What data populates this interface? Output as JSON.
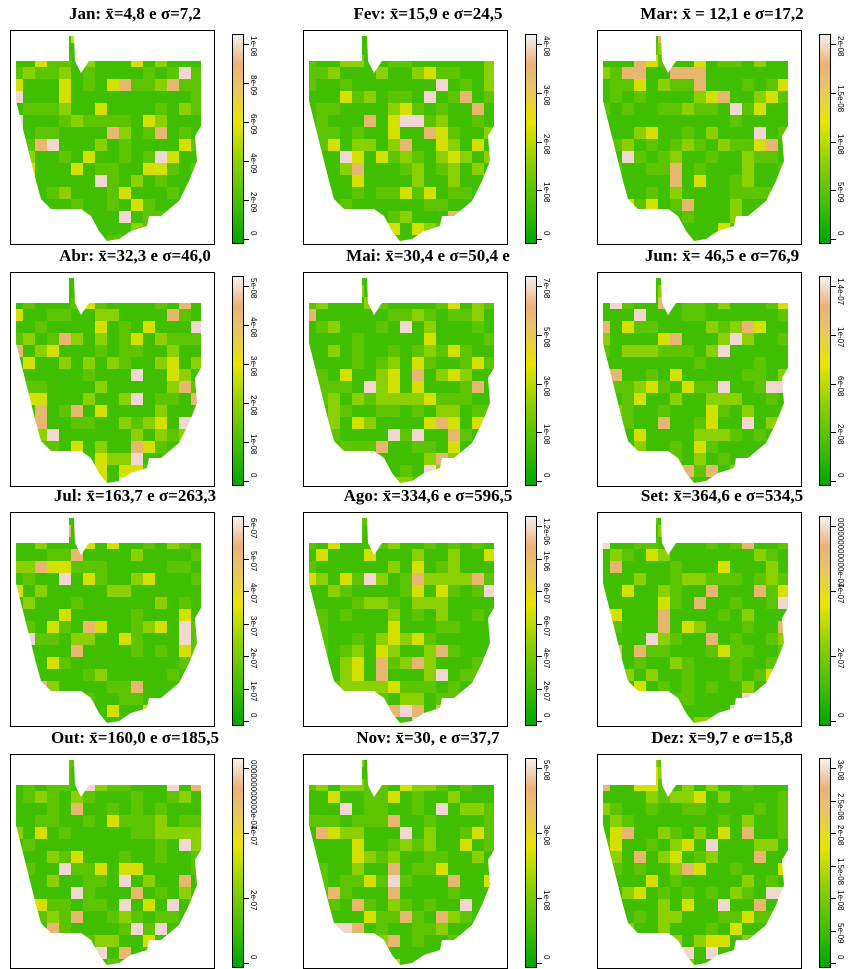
{
  "panels": [
    {
      "title": "Jan: x̄=4,8 e σ=7,2",
      "ticks": [
        "0",
        "2e-09",
        "4e-09",
        "6e-09",
        "8e-09",
        "1e-08"
      ],
      "seed": 1
    },
    {
      "title": "Fev: x̄=15,9 e σ=24,5",
      "ticks": [
        "0",
        "1e-08",
        "2e-08",
        "3e-08",
        "4e-08"
      ],
      "seed": 2
    },
    {
      "title": "Mar: x̄ = 12,1 e σ=17,2",
      "ticks": [
        "0",
        "5e-09",
        "1e-08",
        "1.5e-08",
        "2e-08"
      ],
      "seed": 3
    },
    {
      "title": "Abr: x̄=32,3 e σ=46,0",
      "ticks": [
        "0",
        "1e-08",
        "2e-08",
        "3e-08",
        "4e-08",
        "5e-08"
      ],
      "seed": 4
    },
    {
      "title": "Mai: x̄=30,4 e σ=50,4 e",
      "ticks": [
        "0",
        "1e-08",
        "3e-08",
        "5e-08",
        "7e-08"
      ],
      "seed": 5
    },
    {
      "title": "Jun: x̄= 46,5 e σ=76,9",
      "ticks": [
        "0",
        "2e-08",
        "6e-08",
        "1e-07",
        "1.4e-07"
      ],
      "seed": 6
    },
    {
      "title": "Jul: x̄=163,7 e σ=263,3",
      "ticks": [
        "0",
        "1e-07",
        "2e-07",
        "3e-07",
        "4e-07",
        "5e-07",
        "6e-07"
      ],
      "seed": 7
    },
    {
      "title": "Ago: x̄=334,6 e σ=596,5",
      "ticks": [
        "0",
        "2e-07",
        "4e-07",
        "6e-07",
        "8e-07",
        "1e-06",
        "1.2e-06"
      ],
      "seed": 8
    },
    {
      "title": "Set: x̄=364,6 e σ=534,5",
      "ticks": [
        "0",
        "2e-07",
        "4e-07",
        "000000000000e-07"
      ],
      "seed": 9
    },
    {
      "title": "Out: x̄=160,0 e σ=185,5",
      "ticks": [
        "0",
        "2e-07",
        "4e-07",
        "000000000000e-07"
      ],
      "seed": 10
    },
    {
      "title": "Nov: x̄=30, e σ=37,7",
      "ticks": [
        "0",
        "1e-08",
        "3e-08",
        "5e-08"
      ],
      "seed": 11
    },
    {
      "title": "Dez: x̄=9,7 e σ=15,8",
      "ticks": [
        "0",
        "5e-09",
        "1e-08",
        "1.5e-08",
        "2e-08",
        "2.5e-08",
        "3e-08"
      ],
      "seed": 12
    }
  ],
  "colors": {
    "low": "#00a600",
    "mid": "#e6e600",
    "high": "#ecb176",
    "max": "#f2f2f2"
  }
}
